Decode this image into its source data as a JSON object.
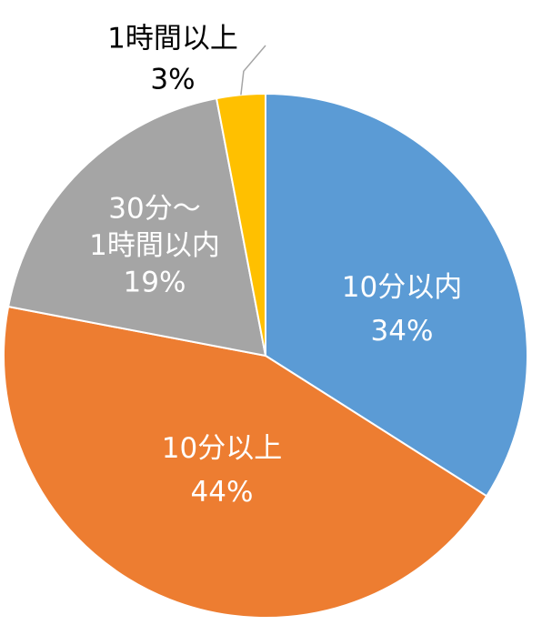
{
  "chart_data": {
    "type": "pie",
    "title": "",
    "slices": [
      {
        "label": "10分以内",
        "percent_label": "34%",
        "value": 34,
        "color": "#5B9BD5",
        "text_color": "#FFFFFF"
      },
      {
        "label": "10分以上",
        "percent_label": "44%",
        "value": 44,
        "color": "#ED7D31",
        "text_color": "#FFFFFF"
      },
      {
        "label": "30分～\n1時間以内",
        "percent_label": "19%",
        "value": 19,
        "color": "#A5A5A5",
        "text_color": "#FFFFFF"
      },
      {
        "label": "1時間以上",
        "percent_label": "3%",
        "value": 3,
        "color": "#FFC000",
        "text_color": "#000000"
      }
    ],
    "start_angle_deg": 0,
    "direction": "clockwise",
    "legend": "none",
    "leader_line_color": "#A5A5A5"
  }
}
